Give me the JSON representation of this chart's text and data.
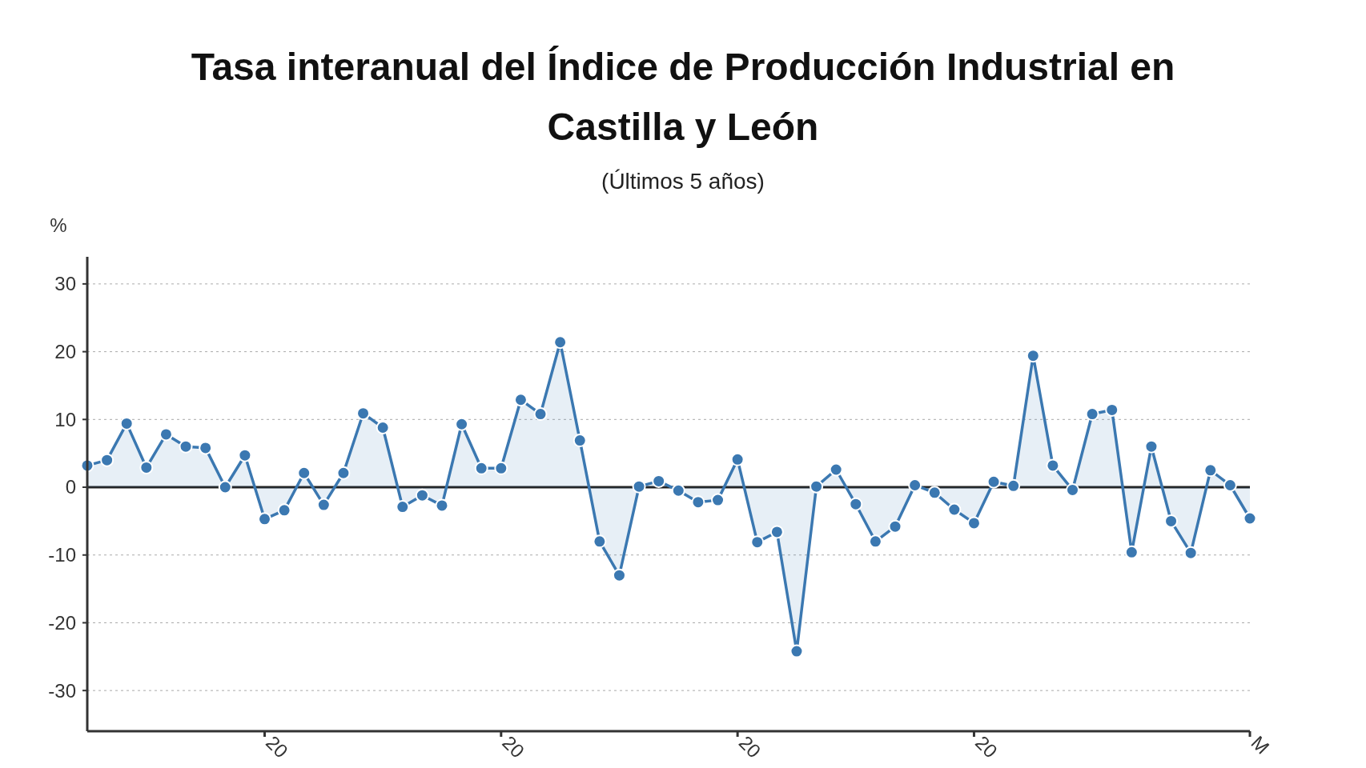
{
  "chart_data": {
    "type": "area",
    "title": "Tasa interanual del Índice de Producción Industrial en Castilla y León",
    "subtitle": "(Últimos 5 años)",
    "ylabel": "%",
    "categories": [
      null,
      null,
      null,
      null,
      null,
      null,
      null,
      null,
      null,
      "20",
      null,
      null,
      null,
      null,
      null,
      null,
      null,
      null,
      null,
      null,
      null,
      "20",
      null,
      null,
      null,
      null,
      null,
      null,
      null,
      null,
      null,
      null,
      null,
      "20",
      null,
      null,
      null,
      null,
      null,
      null,
      null,
      null,
      null,
      null,
      null,
      "20",
      null,
      null,
      null,
      null,
      null,
      null,
      null,
      null,
      null,
      null,
      null,
      null,
      null,
      "M"
    ],
    "series": [
      {
        "color": "#3b78b1",
        "values": [
          3.2,
          4,
          9.4,
          2.9,
          7.8,
          6,
          5.8,
          0,
          4.7,
          -4.7,
          -3.4,
          2.1,
          -2.6,
          2.1,
          10.9,
          8.8,
          -2.9,
          -1.2,
          -2.7,
          9.3,
          2.8,
          2.8,
          12.9,
          10.8,
          21.4,
          6.9,
          -8,
          -13,
          0.1,
          0.9,
          -0.5,
          -2.2,
          -1.9,
          4.1,
          -8.1,
          -6.6,
          -24.2,
          0.1,
          2.6,
          -2.5,
          -8,
          -5.8,
          0.3,
          -0.8,
          -3.3,
          -5.3,
          0.8,
          0.2,
          19.4,
          3.2,
          -0.4,
          10.8,
          11.4,
          -9.6,
          6,
          -5,
          -9.7,
          2.5,
          0.3,
          -4.6
        ]
      }
    ],
    "ylim": [
      -36,
      34
    ],
    "yticks": [
      -30,
      -20,
      -10,
      0,
      10,
      20,
      30
    ],
    "ref_lines": [
      {
        "axis": "y",
        "value": 0,
        "color": "#222222"
      }
    ],
    "grid": "y",
    "marker": "circle",
    "line_style": "solid"
  }
}
